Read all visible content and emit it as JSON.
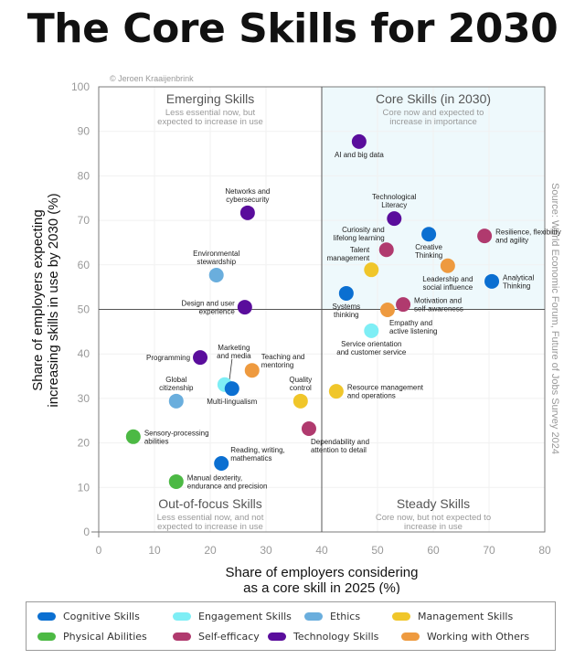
{
  "title": "The Core Skills for 2030",
  "chart_data": {
    "type": "scatter",
    "title": "The Core Skills for 2030",
    "copyright": "© Jeroen Kraaijenbrink",
    "source": "Source: World Economic Forum, Future of Jobs Survey 2024",
    "xlabel": [
      "Share of employers considering",
      "as a core skill in 2025 (%)"
    ],
    "ylabel": [
      "Share of employers expecting",
      "increasing skills in use by 2030 (%)"
    ],
    "xlim": [
      0,
      80
    ],
    "ylim": [
      0,
      100
    ],
    "xticks": [
      0,
      10,
      20,
      30,
      40,
      50,
      60,
      70,
      80
    ],
    "yticks": [
      0,
      10,
      20,
      30,
      40,
      50,
      60,
      70,
      80,
      90,
      100
    ],
    "grid": true,
    "dividers": {
      "x": 40,
      "y": 50
    },
    "quadrants": [
      {
        "title": "Emerging Skills",
        "subtitle": [
          "Less essential now, but",
          "expected to increase in use"
        ],
        "position": "top-left"
      },
      {
        "title": "Core Skills (in 2030)",
        "subtitle": [
          "Core now and expected to",
          "increase in importance"
        ],
        "position": "top-right"
      },
      {
        "title": "Out-of-focus Skills",
        "subtitle": [
          "Less essential now, and not",
          "expected to increase in use"
        ],
        "position": "bottom-left"
      },
      {
        "title": "Steady Skills",
        "subtitle": [
          "Core now, but not expected to",
          "increase in use"
        ],
        "position": "bottom-right"
      }
    ],
    "categories": [
      {
        "name": "Cognitive Skills",
        "color": "#0b6fd1"
      },
      {
        "name": "Engagement Skills",
        "color": "#7eeef5"
      },
      {
        "name": "Ethics",
        "color": "#6aaedd"
      },
      {
        "name": "Management Skills",
        "color": "#f0c62a"
      },
      {
        "name": "Physical Abilities",
        "color": "#4cb944"
      },
      {
        "name": "Self-efficacy",
        "color": "#b03a6e"
      },
      {
        "name": "Technology Skills",
        "color": "#5a0d9c"
      },
      {
        "name": "Working with Others",
        "color": "#ee9a3f"
      }
    ],
    "points": [
      {
        "label": [
          "AI and big data"
        ],
        "category": "Technology Skills",
        "x": 46.7,
        "y": 87.7,
        "label_pos": "below"
      },
      {
        "label": [
          "Networks and",
          "cybersecurity"
        ],
        "category": "Technology Skills",
        "x": 26.7,
        "y": 71.7,
        "label_pos": "above"
      },
      {
        "label": [
          "Technological",
          "Literacy"
        ],
        "category": "Technology Skills",
        "x": 53.0,
        "y": 70.4,
        "label_pos": "above"
      },
      {
        "label": [
          "Creative",
          "Thinking"
        ],
        "category": "Cognitive Skills",
        "x": 59.2,
        "y": 66.9,
        "label_pos": "below"
      },
      {
        "label": [
          "Resilience, flexibility",
          "and agility"
        ],
        "category": "Self-efficacy",
        "x": 69.2,
        "y": 66.5,
        "label_pos": "right"
      },
      {
        "label": [
          "Curiosity and",
          "lifelong learning"
        ],
        "category": "Self-efficacy",
        "x": 51.6,
        "y": 63.4,
        "label_pos": "upper-left"
      },
      {
        "label": [
          "Talent",
          "management"
        ],
        "category": "Management Skills",
        "x": 48.9,
        "y": 58.9,
        "label_pos": "upper-left"
      },
      {
        "label": [
          "Leadership and",
          "social influence"
        ],
        "category": "Working with Others",
        "x": 62.6,
        "y": 59.8,
        "label_pos": "below"
      },
      {
        "label": [
          "Analytical",
          "Thinking"
        ],
        "category": "Cognitive Skills",
        "x": 70.5,
        "y": 56.3,
        "label_pos": "right"
      },
      {
        "label": [
          "Environmental",
          "stewardship"
        ],
        "category": "Ethics",
        "x": 21.1,
        "y": 57.7,
        "label_pos": "above"
      },
      {
        "label": [
          "Systems",
          "thinking"
        ],
        "category": "Cognitive Skills",
        "x": 44.4,
        "y": 53.6,
        "label_pos": "below"
      },
      {
        "label": [
          "Design and user",
          "experience"
        ],
        "category": "Technology Skills",
        "x": 26.2,
        "y": 50.5,
        "label_pos": "left"
      },
      {
        "label": [
          "Motivation and",
          "self-awareness"
        ],
        "category": "Self-efficacy",
        "x": 54.6,
        "y": 51.1,
        "label_pos": "right"
      },
      {
        "label": [
          "Empathy and",
          "active listening"
        ],
        "category": "Working with Others",
        "x": 51.8,
        "y": 49.9,
        "label_pos": "lower-right"
      },
      {
        "label": [
          "Service orientation",
          "and customer service"
        ],
        "category": "Engagement Skills",
        "x": 48.9,
        "y": 45.2,
        "label_pos": "below"
      },
      {
        "label": [
          "Programming"
        ],
        "category": "Technology Skills",
        "x": 18.2,
        "y": 39.2,
        "label_pos": "left"
      },
      {
        "label": [
          "Teaching and",
          "mentoring"
        ],
        "category": "Working with Others",
        "x": 27.5,
        "y": 36.3,
        "label_pos": "upper-right"
      },
      {
        "label": [
          "Marketing",
          "and media"
        ],
        "category": "Engagement Skills",
        "x": 22.6,
        "y": 33.1,
        "label_pos": "above-leader"
      },
      {
        "label": [
          "Multi-lingualism"
        ],
        "category": "Cognitive Skills",
        "x": 23.9,
        "y": 32.2,
        "label_pos": "below"
      },
      {
        "label": [
          "Global",
          "citizenship"
        ],
        "category": "Ethics",
        "x": 13.9,
        "y": 29.4,
        "label_pos": "above"
      },
      {
        "label": [
          "Quality",
          "control"
        ],
        "category": "Management Skills",
        "x": 36.2,
        "y": 29.4,
        "label_pos": "above"
      },
      {
        "label": [
          "Resource management",
          "and operations"
        ],
        "category": "Management Skills",
        "x": 42.6,
        "y": 31.6,
        "label_pos": "right"
      },
      {
        "label": [
          "Dependability and",
          "attention to detail"
        ],
        "category": "Self-efficacy",
        "x": 37.7,
        "y": 23.2,
        "label_pos": "lower-right"
      },
      {
        "label": [
          "Sensory-processing",
          "abilities"
        ],
        "category": "Physical Abilities",
        "x": 6.2,
        "y": 21.4,
        "label_pos": "right"
      },
      {
        "label": [
          "Reading, writing,",
          "mathematics"
        ],
        "category": "Cognitive Skills",
        "x": 22.0,
        "y": 15.4,
        "label_pos": "upper-right"
      },
      {
        "label": [
          "Manual dexterity,",
          "endurance and precision"
        ],
        "category": "Physical Abilities",
        "x": 13.9,
        "y": 11.3,
        "label_pos": "right"
      }
    ]
  },
  "legend": {
    "items": [
      {
        "label": "Cognitive Skills",
        "color": "#0b6fd1"
      },
      {
        "label": "Engagement Skills",
        "color": "#7eeef5"
      },
      {
        "label": "Ethics",
        "color": "#6aaedd"
      },
      {
        "label": "Management Skills",
        "color": "#f0c62a"
      },
      {
        "label": "Physical Abilities",
        "color": "#4cb944"
      },
      {
        "label": "Self-efficacy",
        "color": "#b03a6e"
      },
      {
        "label": "Technology Skills",
        "color": "#5a0d9c"
      },
      {
        "label": "Working with Others",
        "color": "#ee9a3f"
      }
    ]
  }
}
